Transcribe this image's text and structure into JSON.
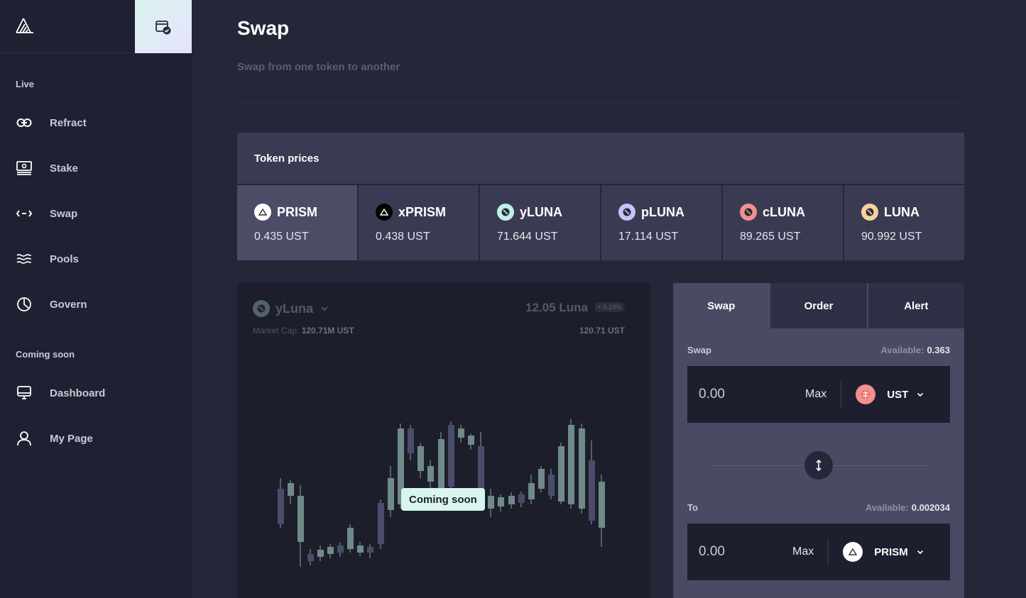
{
  "sidebar": {
    "live_label": "Live",
    "coming_soon_label": "Coming soon",
    "live_items": [
      {
        "label": "Refract",
        "icon": "link-icon"
      },
      {
        "label": "Stake",
        "icon": "stake-icon"
      },
      {
        "label": "Swap",
        "icon": "swap-arrows-icon"
      },
      {
        "label": "Pools",
        "icon": "waves-icon"
      },
      {
        "label": "Govern",
        "icon": "pie-chart-icon"
      }
    ],
    "soon_items": [
      {
        "label": "Dashboard",
        "icon": "monitor-icon"
      },
      {
        "label": "My Page",
        "icon": "user-icon"
      }
    ]
  },
  "header": {
    "title": "Swap",
    "subtitle": "Swap from one token to another"
  },
  "token_prices": {
    "title": "Token prices",
    "tokens": [
      {
        "name": "PRISM",
        "price": "0.435 UST",
        "color": "#ffffff"
      },
      {
        "name": "xPRISM",
        "price": "0.438 UST",
        "color": "#000000"
      },
      {
        "name": "yLUNA",
        "price": "71.644 UST",
        "color": "#bff0ea"
      },
      {
        "name": "pLUNA",
        "price": "17.114 UST",
        "color": "#c9c2f7"
      },
      {
        "name": "cLUNA",
        "price": "89.265 UST",
        "color": "#f3908c"
      },
      {
        "name": "LUNA",
        "price": "90.992 UST",
        "color": "#f7d29a"
      }
    ]
  },
  "chart": {
    "token": "yLuna",
    "price": "12.05 Luna",
    "change": "+ 8.23%",
    "market_cap_label": "Market Cap:",
    "market_cap_value": "120.71M UST",
    "right_value": "120.71 UST",
    "coming_soon": "Coming soon"
  },
  "swap": {
    "tabs": [
      "Swap",
      "Order",
      "Alert"
    ],
    "from": {
      "label": "Swap",
      "available_label": "Available:",
      "available_value": "0.363",
      "placeholder": "0.00",
      "max_label": "Max",
      "token": "UST"
    },
    "to": {
      "label": "To",
      "available_label": "Available:",
      "available_value": "0.002034",
      "placeholder": "0.00",
      "max_label": "Max",
      "token": "PRISM"
    }
  }
}
